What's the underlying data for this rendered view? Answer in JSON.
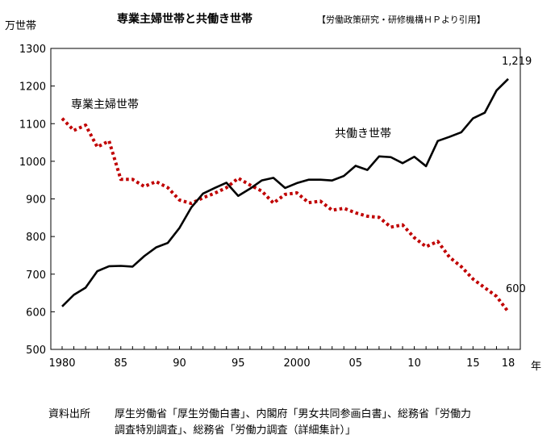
{
  "chart_data": {
    "type": "line",
    "title": "専業主婦世帯と共働き世帯",
    "subtitle": "【労働政策研究・研修機構ＨＰより引用】",
    "ylabel": "万世帯",
    "xlabel": "年",
    "ylim": [
      500,
      1300
    ],
    "yticks": [
      "500",
      "600",
      "700",
      "800",
      "900",
      "1000",
      "1100",
      "1200",
      "1300"
    ],
    "xlim": [
      1980,
      2018
    ],
    "xticks": [
      {
        "year": 1980,
        "label": "1980"
      },
      {
        "year": 1985,
        "label": "85"
      },
      {
        "year": 1990,
        "label": "90"
      },
      {
        "year": 1995,
        "label": "95"
      },
      {
        "year": 2000,
        "label": "2000"
      },
      {
        "year": 2005,
        "label": "05"
      },
      {
        "year": 2010,
        "label": "10"
      },
      {
        "year": 2015,
        "label": "15"
      },
      {
        "year": 2018,
        "label": "18"
      }
    ],
    "x": [
      1980,
      1981,
      1982,
      1983,
      1984,
      1985,
      1986,
      1987,
      1988,
      1989,
      1990,
      1991,
      1992,
      1993,
      1994,
      1995,
      1996,
      1997,
      1998,
      1999,
      2000,
      2001,
      2002,
      2003,
      2004,
      2005,
      2006,
      2007,
      2008,
      2009,
      2010,
      2011,
      2012,
      2013,
      2014,
      2015,
      2016,
      2017,
      2018
    ],
    "series": [
      {
        "name": "専業主婦世帯",
        "color": "#c00000",
        "style": "dotted",
        "values": [
          1114,
          1082,
          1096,
          1038,
          1054,
          952,
          952,
          933,
          946,
          930,
          897,
          888,
          903,
          915,
          930,
          955,
          937,
          921,
          889,
          912,
          916,
          890,
          894,
          870,
          875,
          863,
          854,
          851,
          825,
          831,
          797,
          773,
          787,
          745,
          720,
          687,
          664,
          641,
          600
        ]
      },
      {
        "name": "共働き世帯",
        "color": "#000000",
        "style": "solid",
        "values": [
          614,
          645,
          664,
          708,
          721,
          722,
          720,
          748,
          771,
          783,
          823,
          877,
          914,
          929,
          943,
          908,
          927,
          949,
          956,
          929,
          942,
          951,
          951,
          949,
          961,
          988,
          977,
          1013,
          1011,
          995,
          1012,
          987,
          1054,
          1065,
          1077,
          1114,
          1129,
          1188,
          1219
        ]
      }
    ],
    "end_labels": [
      "600",
      "1,219"
    ]
  },
  "source": {
    "label": "資料出所",
    "line1": "厚生労働省「厚生労働白書」、内閣府「男女共同参画白書」、総務省「労働力",
    "line2": "調査特別調査」、総務省「労働力調査（詳細集計）」"
  }
}
